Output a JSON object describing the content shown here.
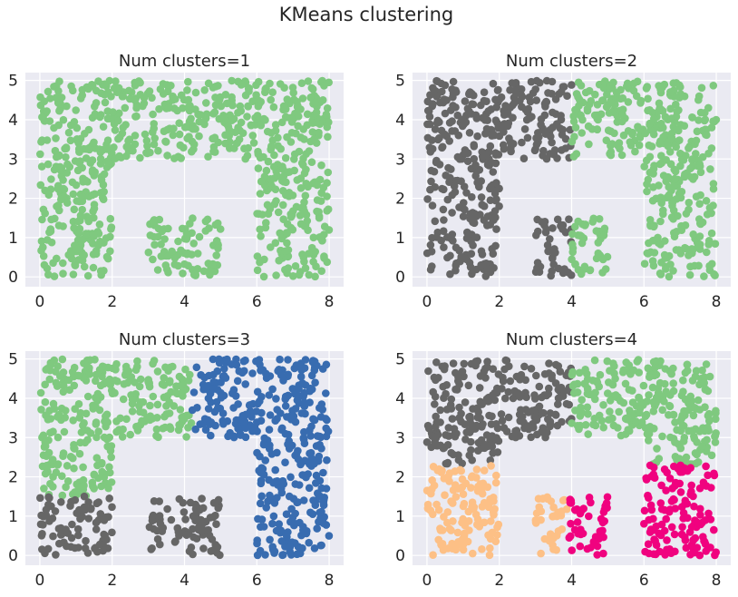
{
  "figure": {
    "suptitle": "KMeans clustering"
  },
  "palette": {
    "green": "#7fc97f",
    "gray": "#666666",
    "blue": "#386cb0",
    "peach": "#fdc086",
    "pink": "#f0027f",
    "panel_bg": "#eaeaf2",
    "grid": "#ffffff"
  },
  "chart_data": [
    {
      "type": "scatter",
      "title": "Num clusters=1",
      "xlim": [
        -0.4,
        8.4
      ],
      "ylim": [
        -0.25,
        5.2
      ],
      "xticks": [
        0,
        2,
        4,
        6,
        8
      ],
      "yticks": [
        0,
        1,
        2,
        3,
        4,
        5
      ],
      "grid": true,
      "series": [
        {
          "color": "green",
          "regions": [
            [
              0,
              0,
              2,
              5
            ],
            [
              2,
              3,
              6,
              5
            ],
            [
              3,
              0,
              5,
              1.5
            ],
            [
              6,
              0,
              8,
              5
            ]
          ]
        }
      ]
    },
    {
      "type": "scatter",
      "title": "Num clusters=2",
      "xlim": [
        -0.4,
        8.4
      ],
      "ylim": [
        -0.25,
        5.2
      ],
      "xticks": [
        0,
        2,
        4,
        6,
        8
      ],
      "yticks": [
        0,
        1,
        2,
        3,
        4,
        5
      ],
      "grid": true,
      "series": [
        {
          "color": "gray",
          "regions": [
            [
              0,
              0,
              2,
              5
            ],
            [
              2,
              3,
              4,
              5
            ],
            [
              3,
              0,
              4,
              1.5
            ]
          ]
        },
        {
          "color": "green",
          "regions": [
            [
              4,
              3,
              6,
              5
            ],
            [
              4,
              0,
              5,
              1.5
            ],
            [
              6,
              0,
              8,
              5
            ]
          ]
        }
      ]
    },
    {
      "type": "scatter",
      "title": "Num clusters=3",
      "xlim": [
        -0.4,
        8.4
      ],
      "ylim": [
        -0.25,
        5.2
      ],
      "xticks": [
        0,
        2,
        4,
        6,
        8
      ],
      "yticks": [
        0,
        1,
        2,
        3,
        4,
        5
      ],
      "grid": true,
      "series": [
        {
          "color": "green",
          "regions": [
            [
              0,
              1.5,
              2,
              5
            ],
            [
              2,
              3,
              4.2,
              5
            ]
          ]
        },
        {
          "color": "gray",
          "regions": [
            [
              0,
              0,
              2,
              1.5
            ],
            [
              3,
              0,
              5,
              1.5
            ]
          ]
        },
        {
          "color": "blue",
          "regions": [
            [
              4.2,
              3,
              6,
              5
            ],
            [
              6,
              0,
              8,
              5
            ]
          ]
        }
      ]
    },
    {
      "type": "scatter",
      "title": "Num clusters=4",
      "xlim": [
        -0.4,
        8.4
      ],
      "ylim": [
        -0.25,
        5.2
      ],
      "xticks": [
        0,
        2,
        4,
        6,
        8
      ],
      "yticks": [
        0,
        1,
        2,
        3,
        4,
        5
      ],
      "grid": true,
      "series": [
        {
          "color": "gray",
          "regions": [
            [
              0,
              2.3,
              2,
              5
            ],
            [
              2,
              3,
              4,
              5
            ]
          ]
        },
        {
          "color": "green",
          "regions": [
            [
              4,
              3,
              6,
              5
            ],
            [
              6,
              2.3,
              8,
              5
            ]
          ]
        },
        {
          "color": "peach",
          "regions": [
            [
              0,
              0,
              2,
              2.3
            ],
            [
              3,
              0,
              3.9,
              1.5
            ]
          ]
        },
        {
          "color": "pink",
          "regions": [
            [
              3.9,
              0,
              5,
              1.5
            ],
            [
              6,
              0,
              8,
              2.3
            ]
          ]
        }
      ]
    }
  ]
}
